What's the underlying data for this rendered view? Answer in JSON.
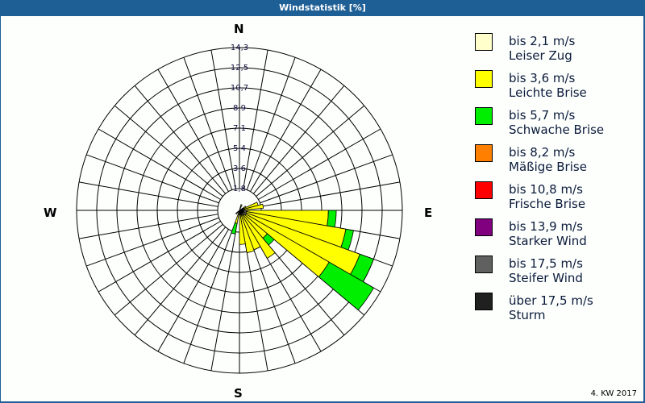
{
  "title": "Windstatistik [%]",
  "footer": "4. KW 2017",
  "compass": {
    "n": "N",
    "e": "E",
    "s": "S",
    "w": "W"
  },
  "legend": [
    {
      "range": "bis 2,1 m/s",
      "name": "Leiser Zug",
      "color": "#ffffcc"
    },
    {
      "range": "bis 3,6 m/s",
      "name": "Leichte Brise",
      "color": "#ffff00"
    },
    {
      "range": "bis 5,7 m/s",
      "name": "Schwache Brise",
      "color": "#00ee00"
    },
    {
      "range": "bis 8,2 m/s",
      "name": "Mäßige Brise",
      "color": "#ff8000"
    },
    {
      "range": "bis 10,8 m/s",
      "name": "Frische Brise",
      "color": "#ff0000"
    },
    {
      "range": "bis 13,9 m/s",
      "name": "Starker Wind",
      "color": "#800080"
    },
    {
      "range": "bis 17,5 m/s",
      "name": "Steifer Wind",
      "color": "#606060"
    },
    {
      "range": "über 17,5 m/s",
      "name": "Sturm",
      "color": "#202020"
    }
  ],
  "chart_data": {
    "type": "wind_rose",
    "title": "Windstatistik [%]",
    "subtitle": "4. KW 2017",
    "ring_labels": [
      "1,8",
      "3,6",
      "5,4",
      "7,1",
      "8,9",
      "10,7",
      "12,5",
      "14,3"
    ],
    "ring_values": [
      1.8,
      3.6,
      5.4,
      7.1,
      8.9,
      10.7,
      12.5,
      14.3
    ],
    "sector_width_deg": 10,
    "series_names": [
      "bis 2,1 m/s",
      "bis 3,6 m/s",
      "bis 5,7 m/s"
    ],
    "sectors": [
      {
        "dir": 20,
        "values": [
          0.3,
          0.2,
          0
        ]
      },
      {
        "dir": 60,
        "values": [
          0.3,
          0.3,
          0
        ]
      },
      {
        "dir": 70,
        "values": [
          0.4,
          1.2,
          0
        ]
      },
      {
        "dir": 80,
        "values": [
          0.4,
          1.6,
          0
        ]
      },
      {
        "dir": 95,
        "values": [
          0.6,
          7.1,
          0.7
        ]
      },
      {
        "dir": 105,
        "values": [
          0.6,
          8.8,
          0.7
        ]
      },
      {
        "dir": 115,
        "values": [
          0.6,
          10.6,
          1.3
        ]
      },
      {
        "dir": 125,
        "values": [
          0.6,
          8.4,
          4.6
        ]
      },
      {
        "dir": 135,
        "values": [
          0.5,
          2.6,
          0.8
        ]
      },
      {
        "dir": 145,
        "values": [
          0.5,
          4.3,
          0
        ]
      },
      {
        "dir": 155,
        "values": [
          0.4,
          3.2,
          0
        ]
      },
      {
        "dir": 165,
        "values": [
          0.4,
          3.3,
          0
        ]
      },
      {
        "dir": 175,
        "values": [
          0.3,
          2.6,
          0
        ]
      },
      {
        "dir": 195,
        "values": [
          0.3,
          0.8,
          0.9
        ]
      },
      {
        "dir": 225,
        "values": [
          0.2,
          0.2,
          0
        ]
      }
    ]
  }
}
